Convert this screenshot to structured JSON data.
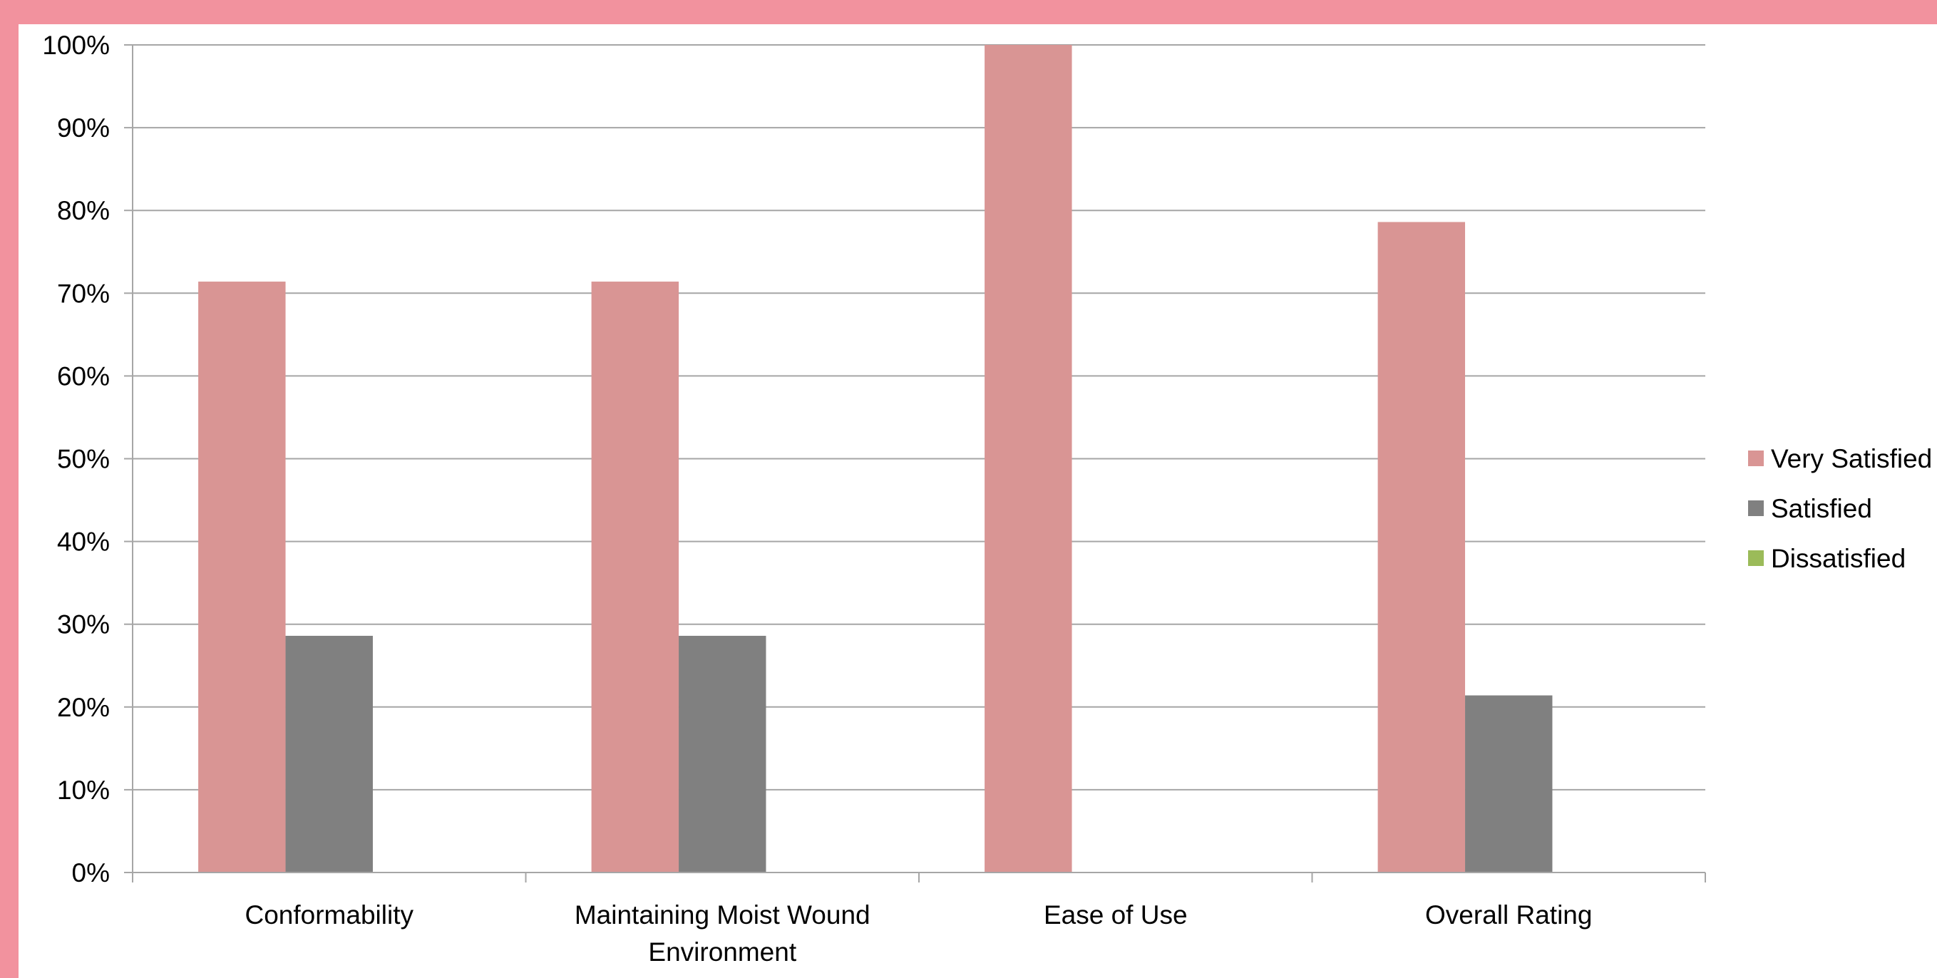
{
  "chart_data": {
    "type": "bar",
    "title": "",
    "xlabel": "",
    "ylabel": "",
    "categories": [
      [
        "Conformability"
      ],
      [
        "Maintaining Moist Wound",
        "Environment"
      ],
      [
        "Ease of Use"
      ],
      [
        "Overall Rating"
      ]
    ],
    "series": [
      {
        "name": "Very Satisfied",
        "color": "#d99594",
        "values": [
          71.4,
          71.4,
          100,
          78.6
        ]
      },
      {
        "name": "Satisfied",
        "color": "#808080",
        "values": [
          28.6,
          28.6,
          0,
          21.4
        ]
      },
      {
        "name": "Dissatisfied",
        "color": "#9bbb59",
        "values": [
          0,
          0,
          0,
          0
        ]
      }
    ],
    "ylim": [
      0,
      100
    ],
    "yticks": [
      0,
      10,
      20,
      30,
      40,
      50,
      60,
      70,
      80,
      90,
      100
    ],
    "ytick_labels": [
      "0%",
      "10%",
      "20%",
      "30%",
      "40%",
      "50%",
      "60%",
      "70%",
      "80%",
      "90%",
      "100%"
    ],
    "grid": true,
    "legend_position": "right"
  }
}
